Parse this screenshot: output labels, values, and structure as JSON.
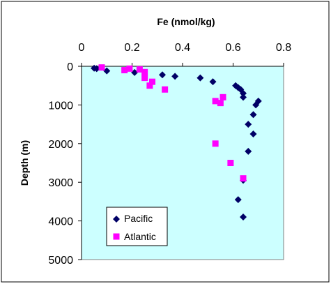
{
  "chart_data": {
    "type": "scatter",
    "title": "",
    "xlabel": "Fe (nmol/kg)",
    "ylabel": "Depth (m)",
    "x_axis_position": "top",
    "y_axis_inverted": true,
    "xlim": [
      0,
      0.8
    ],
    "ylim": [
      0,
      5000
    ],
    "x_ticks": [
      0,
      0.2,
      0.4,
      0.6,
      0.8
    ],
    "x_tick_labels": [
      "0",
      "0.2",
      "0.4",
      "0.6",
      "0.8"
    ],
    "y_ticks": [
      0,
      1000,
      2000,
      3000,
      4000,
      5000
    ],
    "y_tick_labels": [
      "0",
      "1000",
      "2000",
      "3000",
      "4000",
      "5000"
    ],
    "plot_background": "#ccffff",
    "grid": false,
    "legend_position": "bottom-left",
    "series": [
      {
        "name": "Pacific",
        "marker": "diamond",
        "color": "#000066",
        "points": [
          {
            "x": 0.05,
            "y": 50
          },
          {
            "x": 0.06,
            "y": 60
          },
          {
            "x": 0.1,
            "y": 120
          },
          {
            "x": 0.21,
            "y": 160
          },
          {
            "x": 0.32,
            "y": 220
          },
          {
            "x": 0.37,
            "y": 260
          },
          {
            "x": 0.47,
            "y": 300
          },
          {
            "x": 0.52,
            "y": 400
          },
          {
            "x": 0.61,
            "y": 500
          },
          {
            "x": 0.62,
            "y": 550
          },
          {
            "x": 0.63,
            "y": 600
          },
          {
            "x": 0.64,
            "y": 700
          },
          {
            "x": 0.64,
            "y": 800
          },
          {
            "x": 0.7,
            "y": 900
          },
          {
            "x": 0.69,
            "y": 1000
          },
          {
            "x": 0.68,
            "y": 1250
          },
          {
            "x": 0.66,
            "y": 1500
          },
          {
            "x": 0.68,
            "y": 1750
          },
          {
            "x": 0.66,
            "y": 2200
          },
          {
            "x": 0.64,
            "y": 2950
          },
          {
            "x": 0.62,
            "y": 3450
          },
          {
            "x": 0.64,
            "y": 3900
          }
        ]
      },
      {
        "name": "Atlantic",
        "marker": "square",
        "color": "#ff00ff",
        "points": [
          {
            "x": 0.08,
            "y": 30
          },
          {
            "x": 0.17,
            "y": 100
          },
          {
            "x": 0.19,
            "y": 60
          },
          {
            "x": 0.23,
            "y": 80
          },
          {
            "x": 0.25,
            "y": 150
          },
          {
            "x": 0.25,
            "y": 300
          },
          {
            "x": 0.28,
            "y": 400
          },
          {
            "x": 0.27,
            "y": 500
          },
          {
            "x": 0.33,
            "y": 600
          },
          {
            "x": 0.53,
            "y": 900
          },
          {
            "x": 0.55,
            "y": 950
          },
          {
            "x": 0.56,
            "y": 800
          },
          {
            "x": 0.53,
            "y": 2000
          },
          {
            "x": 0.59,
            "y": 2500
          },
          {
            "x": 0.64,
            "y": 2900
          }
        ]
      }
    ]
  }
}
